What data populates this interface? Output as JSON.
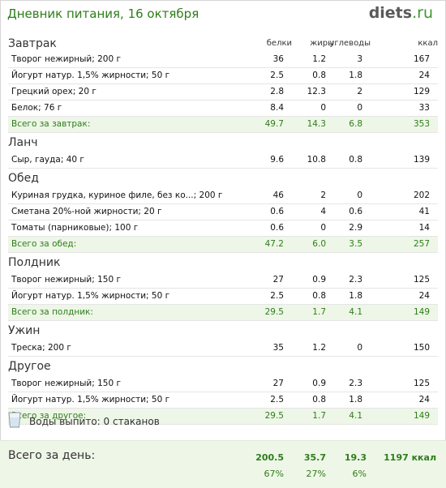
{
  "header": {
    "title": "Дневник питания, 16 октября",
    "logo_main": "diets",
    "logo_tld": ".ru"
  },
  "columns": {
    "protein": "белки",
    "fat": "жиры",
    "carbs": "углеводы",
    "kcal": "ккал"
  },
  "meals": [
    {
      "title": "Завтрак",
      "items": [
        {
          "name": "Творог нежирный; 200 г",
          "p": "36",
          "f": "1.2",
          "c": "3",
          "k": "167"
        },
        {
          "name": "Йогурт натур. 1,5% жирности; 50 г",
          "p": "2.5",
          "f": "0.8",
          "c": "1.8",
          "k": "24"
        },
        {
          "name": "Грецкий орех; 20 г",
          "p": "2.8",
          "f": "12.3",
          "c": "2",
          "k": "129"
        },
        {
          "name": "Белок; 76 г",
          "p": "8.4",
          "f": "0",
          "c": "0",
          "k": "33"
        }
      ],
      "total": {
        "name": "Всего за завтрак:",
        "p": "49.7",
        "f": "14.3",
        "c": "6.8",
        "k": "353"
      }
    },
    {
      "title": "Ланч",
      "items": [
        {
          "name": "Сыр, гауда; 40 г",
          "p": "9.6",
          "f": "10.8",
          "c": "0.8",
          "k": "139"
        }
      ]
    },
    {
      "title": "Обед",
      "items": [
        {
          "name": "Куриная грудка, куриное филе, без ко...; 200 г",
          "p": "46",
          "f": "2",
          "c": "0",
          "k": "202"
        },
        {
          "name": "Сметана 20%-ной жирности; 20 г",
          "p": "0.6",
          "f": "4",
          "c": "0.6",
          "k": "41"
        },
        {
          "name": "Томаты (парниковые); 100 г",
          "p": "0.6",
          "f": "0",
          "c": "2.9",
          "k": "14"
        }
      ],
      "total": {
        "name": "Всего за обед:",
        "p": "47.2",
        "f": "6.0",
        "c": "3.5",
        "k": "257"
      }
    },
    {
      "title": "Полдник",
      "items": [
        {
          "name": "Творог нежирный; 150 г",
          "p": "27",
          "f": "0.9",
          "c": "2.3",
          "k": "125"
        },
        {
          "name": "Йогурт натур. 1,5% жирности; 50 г",
          "p": "2.5",
          "f": "0.8",
          "c": "1.8",
          "k": "24"
        }
      ],
      "total": {
        "name": "Всего за полдник:",
        "p": "29.5",
        "f": "1.7",
        "c": "4.1",
        "k": "149"
      }
    },
    {
      "title": "Ужин",
      "items": [
        {
          "name": "Треска; 200 г",
          "p": "35",
          "f": "1.2",
          "c": "0",
          "k": "150"
        }
      ]
    },
    {
      "title": "Другое",
      "items": [
        {
          "name": "Творог нежирный; 150 г",
          "p": "27",
          "f": "0.9",
          "c": "2.3",
          "k": "125"
        },
        {
          "name": "Йогурт натур. 1,5% жирности; 50 г",
          "p": "2.5",
          "f": "0.8",
          "c": "1.8",
          "k": "24"
        }
      ],
      "total": {
        "name": "Всего за другое:",
        "p": "29.5",
        "f": "1.7",
        "c": "4.1",
        "k": "149"
      }
    }
  ],
  "water": {
    "icon": "glass-icon",
    "text": "Воды выпито: 0 стаканов"
  },
  "day_total": {
    "label": "Всего за день:",
    "p": "200.5",
    "f": "35.7",
    "c": "19.3",
    "k": "1197 ккал",
    "p_pct": "67%",
    "f_pct": "27%",
    "c_pct": "6%"
  },
  "colors": {
    "accent": "#2e7d1a",
    "total_bg": "#eef6e8"
  }
}
